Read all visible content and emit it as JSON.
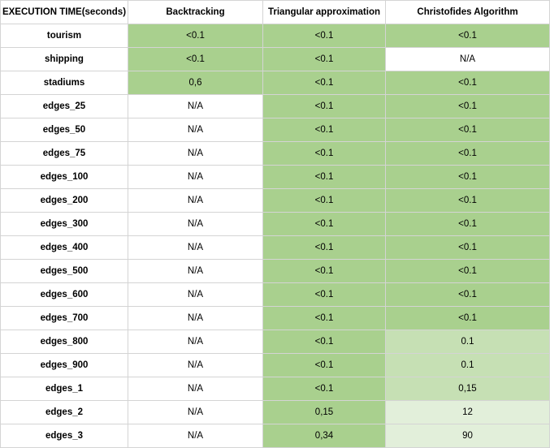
{
  "table": {
    "columns": [
      "EXECUTION TIME(seconds)",
      "Backtracking",
      "Triangular approximation",
      "Christofides Algorithm"
    ],
    "colors": {
      "dark": "#a9d08e",
      "mid": "#c6e0b4",
      "light": "#e2efda",
      "none": "#ffffff"
    },
    "rows": [
      {
        "name": "tourism",
        "values": [
          "<0.1",
          "<0.1",
          "<0.1"
        ],
        "shades": [
          "dark",
          "dark",
          "dark"
        ]
      },
      {
        "name": "shipping",
        "values": [
          "<0.1",
          "<0.1",
          "N/A"
        ],
        "shades": [
          "dark",
          "dark",
          "none"
        ]
      },
      {
        "name": "stadiums",
        "values": [
          "0,6",
          "<0.1",
          "<0.1"
        ],
        "shades": [
          "dark",
          "dark",
          "dark"
        ]
      },
      {
        "name": "edges_25",
        "values": [
          "N/A",
          "<0.1",
          "<0.1"
        ],
        "shades": [
          "none",
          "dark",
          "dark"
        ]
      },
      {
        "name": "edges_50",
        "values": [
          "N/A",
          "<0.1",
          "<0.1"
        ],
        "shades": [
          "none",
          "dark",
          "dark"
        ]
      },
      {
        "name": "edges_75",
        "values": [
          "N/A",
          "<0.1",
          "<0.1"
        ],
        "shades": [
          "none",
          "dark",
          "dark"
        ]
      },
      {
        "name": "edges_100",
        "values": [
          "N/A",
          "<0.1",
          "<0.1"
        ],
        "shades": [
          "none",
          "dark",
          "dark"
        ]
      },
      {
        "name": "edges_200",
        "values": [
          "N/A",
          "<0.1",
          "<0.1"
        ],
        "shades": [
          "none",
          "dark",
          "dark"
        ]
      },
      {
        "name": "edges_300",
        "values": [
          "N/A",
          "<0.1",
          "<0.1"
        ],
        "shades": [
          "none",
          "dark",
          "dark"
        ]
      },
      {
        "name": "edges_400",
        "values": [
          "N/A",
          "<0.1",
          "<0.1"
        ],
        "shades": [
          "none",
          "dark",
          "dark"
        ]
      },
      {
        "name": "edges_500",
        "values": [
          "N/A",
          "<0.1",
          "<0.1"
        ],
        "shades": [
          "none",
          "dark",
          "dark"
        ]
      },
      {
        "name": "edges_600",
        "values": [
          "N/A",
          "<0.1",
          "<0.1"
        ],
        "shades": [
          "none",
          "dark",
          "dark"
        ]
      },
      {
        "name": "edges_700",
        "values": [
          "N/A",
          "<0.1",
          "<0.1"
        ],
        "shades": [
          "none",
          "dark",
          "dark"
        ]
      },
      {
        "name": "edges_800",
        "values": [
          "N/A",
          "<0.1",
          "0.1"
        ],
        "shades": [
          "none",
          "dark",
          "mid"
        ]
      },
      {
        "name": "edges_900",
        "values": [
          "N/A",
          "<0.1",
          "0.1"
        ],
        "shades": [
          "none",
          "dark",
          "mid"
        ]
      },
      {
        "name": "edges_1",
        "values": [
          "N/A",
          "<0.1",
          "0,15"
        ],
        "shades": [
          "none",
          "dark",
          "mid"
        ]
      },
      {
        "name": "edges_2",
        "values": [
          "N/A",
          "0,15",
          "12"
        ],
        "shades": [
          "none",
          "dark",
          "light"
        ]
      },
      {
        "name": "edges_3",
        "values": [
          "N/A",
          "0,34",
          "90"
        ],
        "shades": [
          "none",
          "dark",
          "light"
        ]
      }
    ]
  }
}
